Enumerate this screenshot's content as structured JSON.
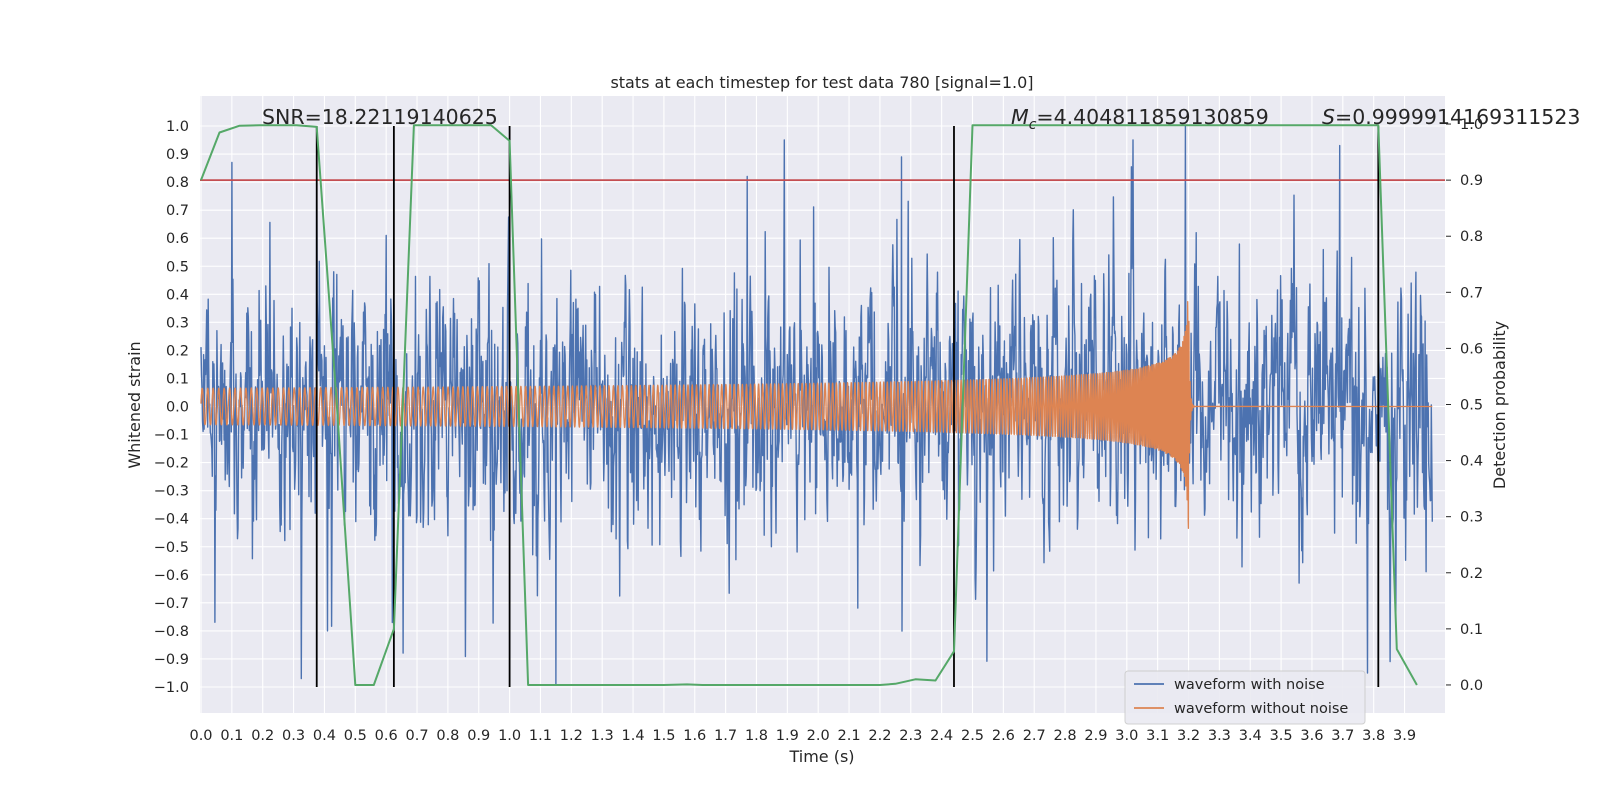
{
  "chart_data": {
    "type": "line",
    "title": "stats at each timestep for test data 780 [signal=1.0]",
    "xlabel": "Time (s)",
    "ylabel": "Whitened strain",
    "y2label": "Detection probability",
    "xlim": [
      0.0,
      3.99
    ],
    "ylim": [
      -1.1,
      1.1
    ],
    "y2lim": [
      -0.05,
      1.05
    ],
    "xticks": [
      0.0,
      0.1,
      0.2,
      0.3,
      0.4,
      0.5,
      0.6,
      0.7,
      0.8,
      0.9,
      1.0,
      1.1,
      1.2,
      1.3,
      1.4,
      1.5,
      1.6,
      1.7,
      1.8,
      1.9,
      2.0,
      2.1,
      2.2,
      2.3,
      2.4,
      2.5,
      2.6,
      2.7,
      2.8,
      2.9,
      3.0,
      3.1,
      3.2,
      3.3,
      3.4,
      3.5,
      3.6,
      3.7,
      3.8,
      3.9
    ],
    "yticks": [
      1.0,
      0.9,
      0.8,
      0.7,
      0.6,
      0.5,
      0.4,
      0.3,
      0.2,
      0.1,
      0.0,
      -0.1,
      -0.2,
      -0.3,
      -0.4,
      -0.5,
      -0.6,
      -0.7,
      -0.8,
      -0.9,
      -1.0
    ],
    "y2ticks": [
      1.0,
      0.9,
      0.8,
      0.7,
      0.6,
      0.5,
      0.4,
      0.3,
      0.2,
      0.1,
      0.0
    ],
    "threshold": 0.9,
    "vlines": [
      0.375,
      0.625,
      1.0,
      2.44,
      3.815
    ],
    "annotations": {
      "snr": "SNR=18.22119140625",
      "mc_symbol": "M",
      "mc_sub": "c",
      "mc_value": "=4.404811859130859",
      "s_symbol": "S",
      "s_value": "=0.9999914169311523"
    },
    "series": [
      {
        "name": "waveform with noise",
        "color": "#4c72b0",
        "kind": "noise",
        "seed": 780,
        "duration": 4.0,
        "rms": 0.21,
        "peaks": [
          {
            "t": 0.1,
            "v": 0.87
          },
          {
            "t": 0.375,
            "v": 0.83
          },
          {
            "t": 0.41,
            "v": -0.8
          },
          {
            "t": 0.6,
            "v": 0.61
          },
          {
            "t": 0.62,
            "v": -0.77
          },
          {
            "t": 1.15,
            "v": -0.99
          },
          {
            "t": 1.77,
            "v": 0.82
          },
          {
            "t": 2.27,
            "v": 0.89
          },
          {
            "t": 3.19,
            "v": 1.0
          },
          {
            "t": 3.69,
            "v": 0.93
          },
          {
            "t": 3.78,
            "v": -0.95
          }
        ]
      },
      {
        "name": "waveform without noise",
        "color": "#dd8452",
        "kind": "chirp",
        "t_merger": 3.2,
        "amp_start": 0.065,
        "amp_end": 0.45,
        "f_start": 56.0,
        "f_end": 250.0
      },
      {
        "name": "detection probability",
        "color": "#55a868",
        "axis": "right",
        "x": [
          0.0,
          0.06,
          0.125,
          0.19,
          0.25,
          0.31,
          0.375,
          0.44,
          0.5,
          0.56,
          0.625,
          0.69,
          0.75,
          0.81,
          0.875,
          0.94,
          1.0,
          1.06,
          1.125,
          1.2,
          1.3,
          1.4,
          1.5,
          1.575,
          1.625,
          1.7,
          1.8,
          1.9,
          2.0,
          2.1,
          2.2,
          2.25,
          2.315,
          2.38,
          2.44,
          2.5,
          2.56,
          2.625,
          2.7,
          2.8,
          2.9,
          3.0,
          3.1,
          3.2,
          3.3,
          3.4,
          3.5,
          3.6,
          3.7,
          3.815,
          3.875,
          3.94
        ],
        "values": [
          0.9,
          0.985,
          0.997,
          0.998,
          0.998,
          0.998,
          0.995,
          0.5,
          0.0,
          0.0,
          0.1,
          0.998,
          0.998,
          0.998,
          0.998,
          0.998,
          0.97,
          0.0,
          0.0,
          0.0,
          0.0,
          0.0,
          0.0,
          0.001,
          0.0,
          0.0,
          0.0,
          0.0,
          0.0,
          0.0,
          0.0,
          0.002,
          0.01,
          0.008,
          0.06,
          0.998,
          0.998,
          0.998,
          0.998,
          0.998,
          0.998,
          0.998,
          0.998,
          0.998,
          0.998,
          0.998,
          0.998,
          0.998,
          0.998,
          0.998,
          0.064,
          0.0
        ]
      }
    ],
    "legend": {
      "position": "lower-right",
      "entries": [
        {
          "label": "waveform with noise",
          "color": "#4c72b0"
        },
        {
          "label": "waveform without noise",
          "color": "#dd8452"
        }
      ]
    },
    "colors": {
      "plot_background": "#eaeaf2",
      "grid": "#ffffff",
      "threshold_line": "#c44e52",
      "vline": "#000000"
    }
  }
}
